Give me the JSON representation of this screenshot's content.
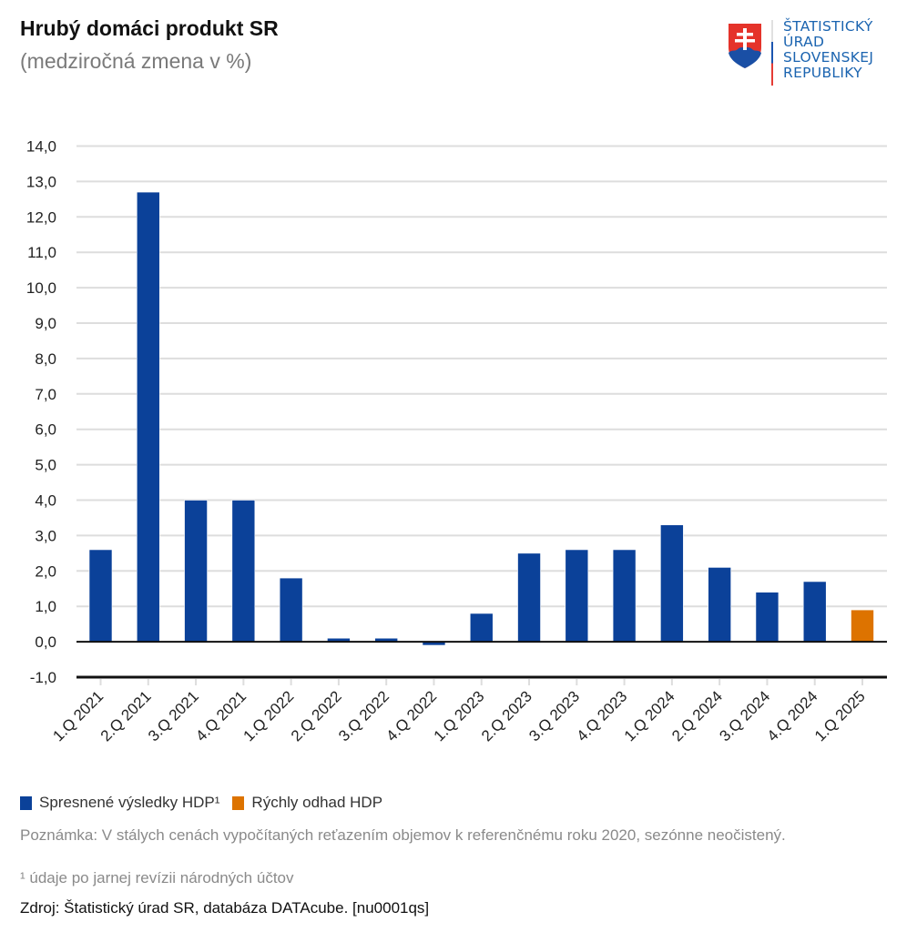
{
  "header": {
    "title": "Hrubý domáci produkt SR",
    "subtitle": "(medziročná zmena v %)"
  },
  "logo": {
    "icon": "slovak-coat-of-arms-icon",
    "lines": [
      "ŠTATISTICKÝ",
      "ÚRAD",
      "SLOVENSKEJ",
      "REPUBLIKY"
    ],
    "text_color": "#1b64b0"
  },
  "chart_data": {
    "type": "bar",
    "title": "Hrubý domáci produkt SR",
    "subtitle": "(medziročná zmena v %)",
    "xlabel": "",
    "ylabel": "",
    "categories": [
      "1.Q 2021",
      "2.Q 2021",
      "3.Q 2021",
      "4.Q 2021",
      "1.Q 2022",
      "2.Q 2022",
      "3.Q 2022",
      "4.Q 2022",
      "1.Q 2023",
      "2.Q 2023",
      "3.Q 2023",
      "4.Q 2023",
      "1.Q 2024",
      "2.Q 2024",
      "3.Q 2024",
      "4.Q 2024",
      "1.Q 2025"
    ],
    "values": [
      2.6,
      12.7,
      4.0,
      4.0,
      1.8,
      0.1,
      0.1,
      -0.1,
      0.8,
      2.5,
      2.6,
      2.6,
      3.3,
      2.1,
      1.4,
      1.7,
      0.9
    ],
    "series_index": [
      0,
      0,
      0,
      0,
      0,
      0,
      0,
      0,
      0,
      0,
      0,
      0,
      0,
      0,
      0,
      0,
      1
    ],
    "series": [
      {
        "name": "Spresnené výsledky HDP¹",
        "color": "#0b4199"
      },
      {
        "name": "Rýchly odhad HDP",
        "color": "#dd7300"
      }
    ],
    "ylim": [
      -1,
      14
    ],
    "yticks": [
      -1,
      0,
      1,
      2,
      3,
      4,
      5,
      6,
      7,
      8,
      9,
      10,
      11,
      12,
      13,
      14
    ],
    "ytick_labels": [
      "-1,0",
      "0,0",
      "1,0",
      "2,0",
      "3,0",
      "4,0",
      "5,0",
      "6,0",
      "7,0",
      "8,0",
      "9,0",
      "10,0",
      "11,0",
      "12,0",
      "13,0",
      "14,0"
    ],
    "grid": true,
    "legend_position": "bottom-left"
  },
  "legend": {
    "items": [
      {
        "label": "Spresnené výsledky HDP¹",
        "color": "#0b4199"
      },
      {
        "label": "Rýchly odhad HDP",
        "color": "#dd7300"
      }
    ]
  },
  "notes": {
    "note": "Poznámka: V stálych cenách vypočítaných reťazením objemov k referenčnému roku 2020, sezónne neočistený.",
    "footnote": "¹ údaje po jarnej revízii národných účtov",
    "source": "Zdroj: Štatistický úrad SR, databáza DATAcube. [nu0001qs]"
  }
}
